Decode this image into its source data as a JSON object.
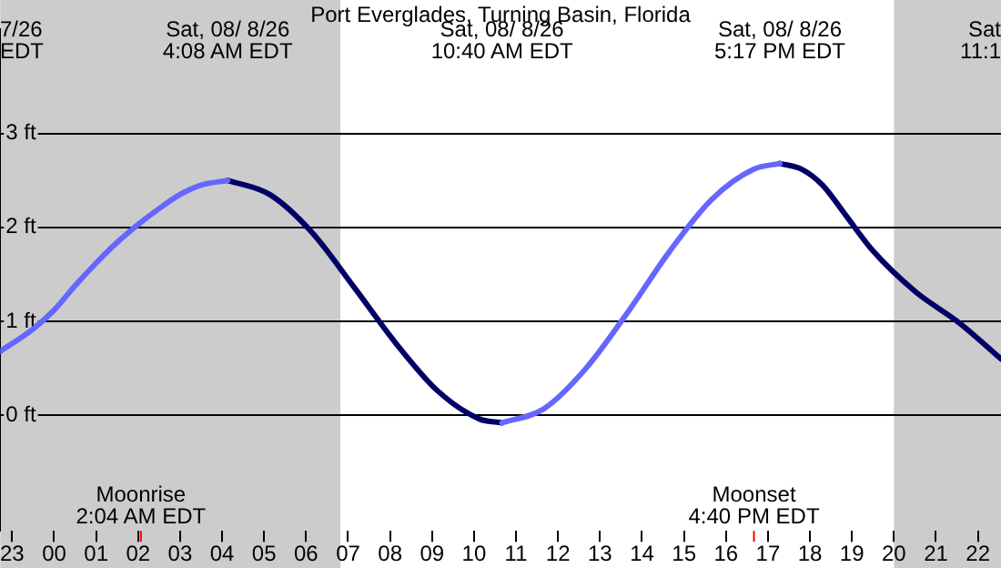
{
  "chart_data": {
    "type": "line",
    "title": "Port Everglades, Turning Basin, Florida",
    "xlim": [
      "--08-07T22:43",
      "--08-08T22:33"
    ],
    "ylim": [
      -1.23,
      4.11
    ],
    "xticks": [
      {
        "value": "--08-07T23:00",
        "label": "23"
      },
      {
        "value": "--08-08T00:00",
        "label": "00"
      },
      {
        "value": "--08-08T01:00",
        "label": "01"
      },
      {
        "value": "--08-08T02:00",
        "label": "02"
      },
      {
        "value": "--08-08T03:00",
        "label": "03"
      },
      {
        "value": "--08-08T04:00",
        "label": "04"
      },
      {
        "value": "--08-08T05:00",
        "label": "05"
      },
      {
        "value": "--08-08T06:00",
        "label": "06"
      },
      {
        "value": "--08-08T07:00",
        "label": "07"
      },
      {
        "value": "--08-08T08:00",
        "label": "08"
      },
      {
        "value": "--08-08T09:00",
        "label": "09"
      },
      {
        "value": "--08-08T10:00",
        "label": "10"
      },
      {
        "value": "--08-08T11:00",
        "label": "11"
      },
      {
        "value": "--08-08T12:00",
        "label": "12"
      },
      {
        "value": "--08-08T13:00",
        "label": "13"
      },
      {
        "value": "--08-08T14:00",
        "label": "14"
      },
      {
        "value": "--08-08T15:00",
        "label": "15"
      },
      {
        "value": "--08-08T16:00",
        "label": "16"
      },
      {
        "value": "--08-08T17:00",
        "label": "17"
      },
      {
        "value": "--08-08T18:00",
        "label": "18"
      },
      {
        "value": "--08-08T19:00",
        "label": "19"
      },
      {
        "value": "--08-08T20:00",
        "label": "20"
      },
      {
        "value": "--08-08T21:00",
        "label": "21"
      },
      {
        "value": "--08-08T22:00",
        "label": "22"
      }
    ],
    "yticks": [
      {
        "value": 0,
        "label": "0 ft"
      },
      {
        "value": 1,
        "label": "1 ft"
      },
      {
        "value": 2,
        "label": "2 ft"
      },
      {
        "value": 3,
        "label": "3 ft"
      }
    ],
    "grid": "y",
    "legend": false,
    "marker": "none",
    "line_style": "solid",
    "series": [
      {
        "color": "#6666ff",
        "x": [
          "--08-07T22:43",
          "--08-07T23:30",
          "--08-08T00:00",
          "--08-08T00:30",
          "--08-08T01:00",
          "--08-08T01:30",
          "--08-08T02:00",
          "--08-08T02:30",
          "--08-08T03:00",
          "--08-08T03:30",
          "--08-08T04:08",
          "--08-08T07:00",
          "--08-08T10:40",
          "--08-08T11:40",
          "--08-08T12:40",
          "--08-08T13:40",
          "--08-08T14:40",
          "--08-08T15:40",
          "--08-08T16:40",
          "--08-08T17:17"
        ],
        "values": [
          0.68,
          0.92,
          1.12,
          1.38,
          1.62,
          1.84,
          2.03,
          2.2,
          2.35,
          2.45,
          2.5,
          null,
          -0.08,
          0.07,
          0.5,
          1.1,
          1.75,
          2.3,
          2.62,
          2.68
        ]
      },
      {
        "color": "#000066",
        "x": [
          "--08-08T04:08",
          "--08-08T05:08",
          "--08-08T06:08",
          "--08-08T07:08",
          "--08-08T08:08",
          "--08-08T09:08",
          "--08-08T10:08",
          "--08-08T10:40",
          "--08-08T14:00",
          "--08-08T17:17",
          "--08-08T17:48",
          "--08-08T18:18",
          "--08-08T18:52",
          "--08-08T19:30",
          "--08-08T20:30",
          "--08-08T21:34",
          "--08-08T22:33"
        ],
        "values": [
          2.5,
          2.35,
          1.95,
          1.37,
          0.77,
          0.26,
          -0.04,
          -0.08,
          null,
          2.68,
          2.62,
          2.45,
          2.12,
          1.75,
          1.32,
          0.98,
          0.6
        ]
      }
    ],
    "bands": [
      {
        "axis": "x",
        "from": "--08-07T22:43",
        "to": "--08-08T06:49",
        "color": "#cccccc"
      },
      {
        "axis": "x",
        "from": "--08-08T20:00",
        "to": "--08-08T22:33",
        "color": "#cccccc"
      }
    ],
    "ref_lines": [
      {
        "axis": "x",
        "value": "--08-08T02:04",
        "label": "Moonrise\n2:04 AM EDT",
        "color": "#ff0000"
      },
      {
        "axis": "x",
        "value": "--08-08T16:40",
        "label": "Moonset\n4:40 PM EDT",
        "color": "#ff0000"
      }
    ],
    "annotations": [
      "7/26\nEDT",
      "Sat, 08/ 8/26\n4:08 AM EDT",
      "Sat, 08/ 8/26\n10:40 AM EDT",
      "Sat, 08/ 8/26\n5:17 PM EDT",
      "Sat\n11:1"
    ]
  }
}
